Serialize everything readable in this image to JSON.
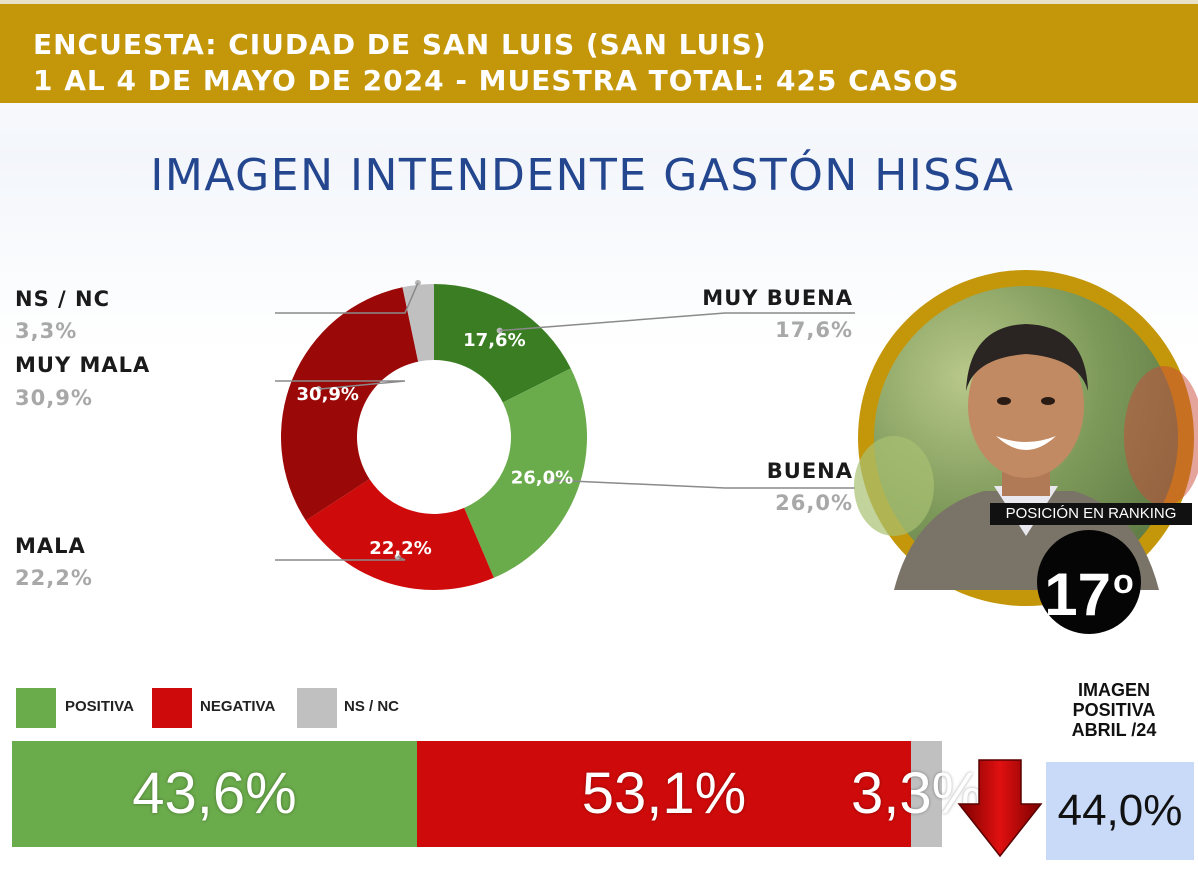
{
  "header": {
    "line1": "ENCUESTA: CIUDAD DE SAN LUIS (SAN LUIS)",
    "line2": "1 AL 4 DE MAYO DE 2024 - MUESTRA TOTAL: 425 CASOS",
    "background": "#c4960a"
  },
  "ranking": {
    "label": "POSICIÓN EN RANKING",
    "number": "17",
    "suffix": "o"
  },
  "previous": {
    "title_lines": [
      "IMAGEN",
      "POSITIVA",
      "ABRIL /24"
    ],
    "value_label": "44,0%",
    "value": 44.0,
    "trend_icon": "down-arrow-icon"
  },
  "chart_data": [
    {
      "type": "pie",
      "title": "IMAGEN INTENDENTE  GASTÓN HISSA",
      "donut": true,
      "categories": [
        "MUY BUENA",
        "BUENA",
        "MALA",
        "MUY MALA",
        "NS / NC"
      ],
      "values": [
        17.6,
        26.0,
        22.2,
        30.9,
        3.3
      ],
      "value_labels": [
        "17,6%",
        "26,0%",
        "22,2%",
        "30,9%",
        "3,3%"
      ],
      "colors": [
        "#3a7d22",
        "#6aab4b",
        "#cf0a0a",
        "#9b0808",
        "#c0c0c0"
      ]
    },
    {
      "type": "bar",
      "stacked": true,
      "orientation": "horizontal",
      "categories": [
        "POSITIVA",
        "NEGATIVA",
        "NS / NC"
      ],
      "values": [
        43.6,
        53.1,
        3.3
      ],
      "value_labels": [
        "43,6%",
        "53,1%",
        "3,3%"
      ],
      "colors": [
        "#6aab4b",
        "#cf0a0a",
        "#c0c0c0"
      ]
    }
  ]
}
